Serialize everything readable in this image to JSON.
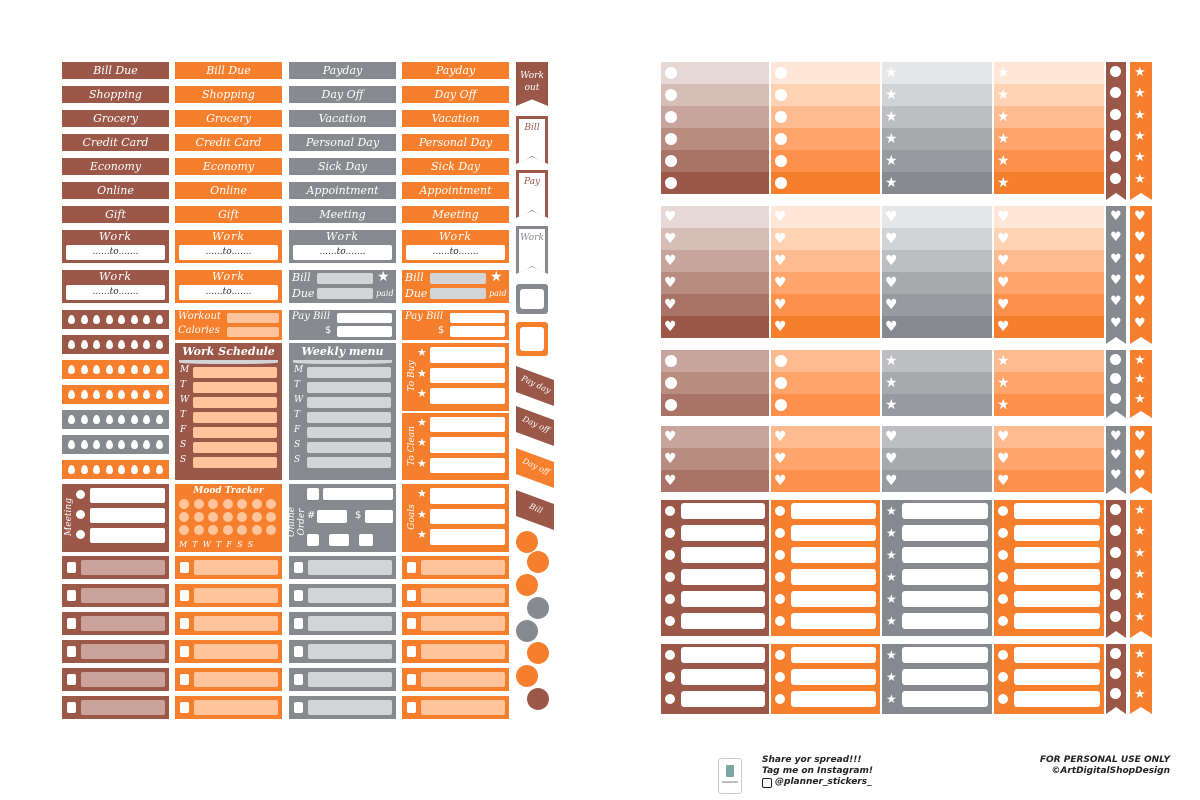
{
  "colors": {
    "brown": "#9b5849",
    "orange": "#f57f2c",
    "gray": "#868a8f",
    "peach": "#ffc49b",
    "lightgray": "#d3d4d6",
    "rose": "#c9a39a"
  },
  "sheet1": {
    "col1_labels": [
      "Bill Due",
      "Shopping",
      "Grocery",
      "Credit Card",
      "Economy",
      "Online",
      "Gift"
    ],
    "col2_labels": [
      "Bill Due",
      "Shopping",
      "Grocery",
      "Credit Card",
      "Economy",
      "Online",
      "Gift"
    ],
    "col3_labels": [
      "Payday",
      "Day Off",
      "Vacation",
      "Personal Day",
      "Sick Day",
      "Appointment",
      "Meeting"
    ],
    "col4_labels": [
      "Payday",
      "Day Off",
      "Vacation",
      "Personal Day",
      "Sick Day",
      "Appointment",
      "Meeting"
    ],
    "work_title": "Work",
    "work_to": "......to.......",
    "bill": "Bill",
    "due": "Due",
    "paid": "paid",
    "pay_bill": "Pay Bill",
    "dollar": "$",
    "workout": "Workout",
    "calories": "Calories",
    "work_schedule": "Work Schedule",
    "weekly_menu": "Weekly menu",
    "days": [
      "M",
      "T",
      "W",
      "T",
      "F",
      "S",
      "S"
    ],
    "to_buy": "To Buy",
    "to_clean": "To Clean",
    "goals": "Goals",
    "mood_tracker": "Mood Tracker",
    "mood_days": "M  T  W  T  F  S  S",
    "online_order": "Online Order",
    "hash": "#",
    "meeting": "Meeting",
    "side_flags": [
      "Work out",
      "Bill",
      "Pay",
      "Work",
      "Pay day",
      "Day off",
      "Day off",
      "Bill"
    ]
  },
  "footer": {
    "share_line1": "Share yor spread!!!",
    "share_line2": "Tag me on Instagram!",
    "handle": "@planner_stickers_",
    "personal": "FOR PERSONAL USE ONLY",
    "copyright": "©ArtDigitalShopDesign"
  }
}
